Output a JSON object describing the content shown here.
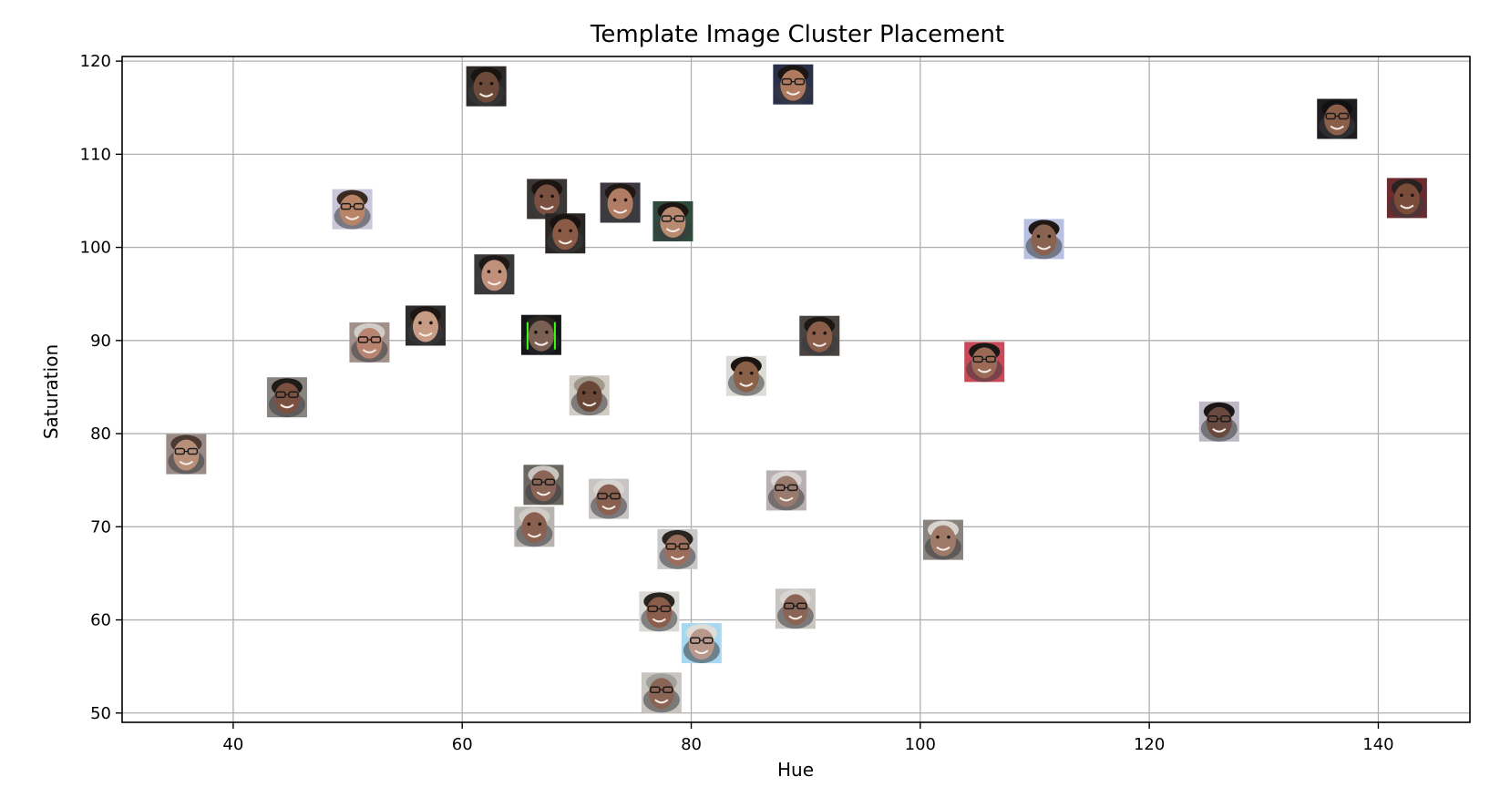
{
  "chart_data": {
    "type": "scatter",
    "title": "Template Image Cluster Placement",
    "xlabel": "Hue",
    "ylabel": "Saturation",
    "xlim": [
      30.3,
      148
    ],
    "ylim": [
      49,
      120.5
    ],
    "xticks": [
      40,
      60,
      80,
      100,
      120,
      140
    ],
    "yticks": [
      50,
      60,
      70,
      80,
      90,
      100,
      110,
      120
    ],
    "grid": true,
    "marker": "face-thumbnail",
    "points": [
      {
        "x": 62.1,
        "y": 117.3,
        "skin": "#6b4a3a",
        "bg": "#2c2a28",
        "hair": "#1a1410",
        "glasses": false
      },
      {
        "x": 88.9,
        "y": 117.5,
        "skin": "#b07a5e",
        "bg": "#2a2f4a",
        "hair": "#1c1612",
        "glasses": true
      },
      {
        "x": 136.4,
        "y": 113.8,
        "skin": "#8a5e48",
        "bg": "#1e1c20",
        "hair": "#121010",
        "glasses": true
      },
      {
        "x": 142.5,
        "y": 105.3,
        "skin": "#7a4c3a",
        "bg": "#6a2c2e",
        "hair": "#2a2020",
        "glasses": false
      },
      {
        "x": 50.4,
        "y": 104.1,
        "skin": "#b88468",
        "bg": "#c8c6d8",
        "hair": "#3a2a22",
        "glasses": true
      },
      {
        "x": 67.4,
        "y": 105.2,
        "skin": "#7a5040",
        "bg": "#3a3634",
        "hair": "#1a1412",
        "glasses": false
      },
      {
        "x": 73.8,
        "y": 104.8,
        "skin": "#b07c64",
        "bg": "#3c3a40",
        "hair": "#201814",
        "glasses": false
      },
      {
        "x": 78.4,
        "y": 102.8,
        "skin": "#b88a70",
        "bg": "#2e4a3c",
        "hair": "#1c1612",
        "glasses": true
      },
      {
        "x": 69.0,
        "y": 101.5,
        "skin": "#8a5a44",
        "bg": "#2a2624",
        "hair": "#181210",
        "glasses": false
      },
      {
        "x": 110.8,
        "y": 100.9,
        "skin": "#8a6250",
        "bg": "#b8c0e0",
        "hair": "#1e1814",
        "glasses": false
      },
      {
        "x": 62.8,
        "y": 97.1,
        "skin": "#c0907a",
        "bg": "#3a3838",
        "hair": "#1e1816",
        "glasses": false
      },
      {
        "x": 56.8,
        "y": 91.6,
        "skin": "#c89c84",
        "bg": "#2e2c2a",
        "hair": "#1c1614",
        "glasses": false
      },
      {
        "x": 51.9,
        "y": 89.8,
        "skin": "#b88470",
        "bg": "#a0908a",
        "hair": "#d0ccc8",
        "glasses": true
      },
      {
        "x": 66.9,
        "y": 90.6,
        "skin": "#7a6052",
        "bg": "#14161a",
        "hair": "#2a2420",
        "glasses": false,
        "frame": "#39ff14"
      },
      {
        "x": 91.2,
        "y": 90.5,
        "skin": "#8a5e48",
        "bg": "#4a4440",
        "hair": "#1e1814",
        "glasses": false
      },
      {
        "x": 105.6,
        "y": 87.7,
        "skin": "#9a6a56",
        "bg": "#c84a5a",
        "hair": "#1c1614",
        "glasses": true
      },
      {
        "x": 84.8,
        "y": 86.2,
        "skin": "#8a6048",
        "bg": "#dcdcd6",
        "hair": "#1a1412",
        "glasses": false
      },
      {
        "x": 44.7,
        "y": 83.9,
        "skin": "#7a5040",
        "bg": "#8a8480",
        "hair": "#1e1a18",
        "glasses": true
      },
      {
        "x": 71.1,
        "y": 84.1,
        "skin": "#6a4838",
        "bg": "#d0ccc4",
        "hair": "#a09888",
        "glasses": false
      },
      {
        "x": 126.1,
        "y": 81.3,
        "skin": "#6a4a40",
        "bg": "#bcb8c4",
        "hair": "#1a1618",
        "glasses": true
      },
      {
        "x": 35.9,
        "y": 77.8,
        "skin": "#b8907a",
        "bg": "#9a8a86",
        "hair": "#4a3a32",
        "glasses": true
      },
      {
        "x": 67.1,
        "y": 74.5,
        "skin": "#8a6454",
        "bg": "#6a6660",
        "hair": "#c8c4c0",
        "glasses": true
      },
      {
        "x": 72.8,
        "y": 73.0,
        "skin": "#8a6050",
        "bg": "#c8c4c4",
        "hair": "#d8d4d0",
        "glasses": true
      },
      {
        "x": 88.3,
        "y": 73.9,
        "skin": "#9a7a6c",
        "bg": "#b8b0b0",
        "hair": "#d8d4d2",
        "glasses": true
      },
      {
        "x": 66.3,
        "y": 70.0,
        "skin": "#8a6050",
        "bg": "#b8b4b0",
        "hair": "#d0ccc8",
        "glasses": false
      },
      {
        "x": 78.8,
        "y": 67.6,
        "skin": "#9a6e5a",
        "bg": "#c8c8c8",
        "hair": "#2a2420",
        "glasses": true
      },
      {
        "x": 102.0,
        "y": 68.6,
        "skin": "#a07a68",
        "bg": "#8a827c",
        "hair": "#d8d4d0",
        "glasses": false
      },
      {
        "x": 77.2,
        "y": 60.9,
        "skin": "#8a5e4a",
        "bg": "#d8d8d4",
        "hair": "#2a2420",
        "glasses": true
      },
      {
        "x": 89.1,
        "y": 61.2,
        "skin": "#8a6454",
        "bg": "#c8c4c0",
        "hair": "#d8d4d0",
        "glasses": true
      },
      {
        "x": 80.9,
        "y": 57.5,
        "skin": "#b8988a",
        "bg": "#a8d8f0",
        "hair": "#e0dcd8",
        "glasses": true
      },
      {
        "x": 77.4,
        "y": 52.2,
        "skin": "#8a6454",
        "bg": "#c8c4c0",
        "hair": "#a0a09c",
        "glasses": true
      }
    ]
  }
}
